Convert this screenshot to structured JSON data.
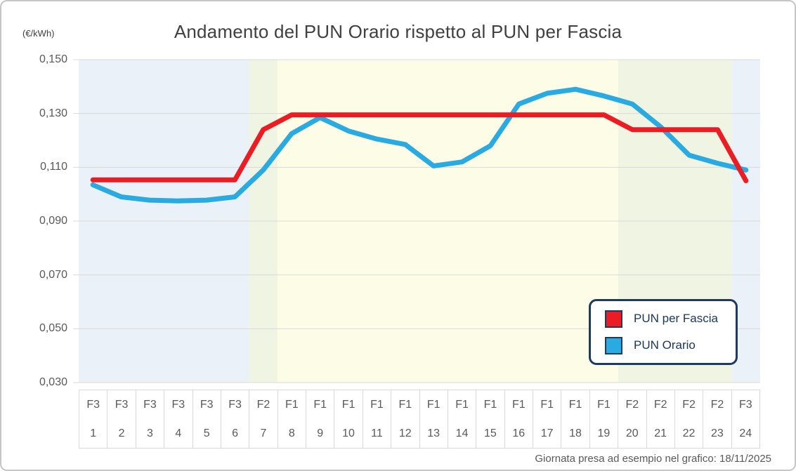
{
  "header": {
    "title": "Andamento del PUN Orario rispetto al PUN per Fascia",
    "y_unit_label": "(€/kWh)"
  },
  "footer": {
    "note": "Giornata presa ad esempio nel grafico: 18/11/2025"
  },
  "legend": {
    "border_color": "#1f3a60",
    "items": [
      {
        "label": "PUN per Fascia",
        "color": "#ec1c24"
      },
      {
        "label": "PUN Orario",
        "color": "#29abe2"
      }
    ]
  },
  "chart_data": {
    "type": "line",
    "title": "Andamento del PUN Orario rispetto al PUN per Fascia",
    "xlabel": "",
    "ylabel": "€/kWh",
    "ylim": [
      0.03,
      0.15
    ],
    "yticks": [
      0.15,
      0.13,
      0.11,
      0.09,
      0.07,
      0.05,
      0.03
    ],
    "ytick_labels": [
      "0,150",
      "0,130",
      "0,110",
      "0,090",
      "0,070",
      "0,050",
      "0,030"
    ],
    "grid": true,
    "grid_color": "#d9d9d9",
    "legend_position": "bottom-right",
    "x_hours": [
      1,
      2,
      3,
      4,
      5,
      6,
      7,
      8,
      9,
      10,
      11,
      12,
      13,
      14,
      15,
      16,
      17,
      18,
      19,
      20,
      21,
      22,
      23,
      24
    ],
    "x_fasce": [
      "F3",
      "F3",
      "F3",
      "F3",
      "F3",
      "F3",
      "F2",
      "F1",
      "F1",
      "F1",
      "F1",
      "F1",
      "F1",
      "F1",
      "F1",
      "F1",
      "F1",
      "F1",
      "F1",
      "F2",
      "F2",
      "F2",
      "F2",
      "F3"
    ],
    "series": [
      {
        "name": "PUN per Fascia",
        "color": "#ec1c24",
        "values": [
          0.1053,
          0.1053,
          0.1053,
          0.1053,
          0.1053,
          0.1053,
          0.124,
          0.1295,
          0.1295,
          0.1295,
          0.1295,
          0.1295,
          0.1295,
          0.1295,
          0.1295,
          0.1295,
          0.1295,
          0.1295,
          0.1295,
          0.124,
          0.124,
          0.124,
          0.124,
          0.105
        ]
      },
      {
        "name": "PUN Orario",
        "color": "#29abe2",
        "values": [
          0.1035,
          0.099,
          0.0978,
          0.0975,
          0.0978,
          0.099,
          0.109,
          0.1225,
          0.1285,
          0.1235,
          0.1205,
          0.1185,
          0.1105,
          0.112,
          0.118,
          0.1335,
          0.1375,
          0.139,
          0.1365,
          0.1335,
          0.125,
          0.1145,
          0.1115,
          0.109
        ]
      }
    ],
    "fascia_bands": [
      {
        "fascia": "F3",
        "hours": [
          1,
          6
        ],
        "color": "#eaf1f8"
      },
      {
        "fascia": "F2",
        "hours": [
          7,
          7
        ],
        "color": "#f0f5e3"
      },
      {
        "fascia": "F1",
        "hours": [
          8,
          19
        ],
        "color": "#fdfde7"
      },
      {
        "fascia": "F2",
        "hours": [
          20,
          23
        ],
        "color": "#f0f5e3"
      },
      {
        "fascia": "F3",
        "hours": [
          24,
          24
        ],
        "color": "#eaf1f8"
      }
    ]
  }
}
